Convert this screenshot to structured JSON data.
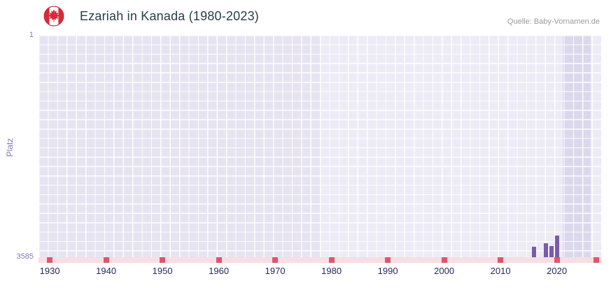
{
  "header": {
    "title": "Ezariah in Kanada (1980-2023)",
    "source": "Quelle: Baby-Vornamen.de",
    "flag_icon": "canada-flag-icon"
  },
  "chart_data": {
    "type": "bar",
    "title": "Ezariah in Kanada (1980-2023)",
    "xlabel": "",
    "ylabel": "Platz",
    "x_range": [
      1928,
      2028
    ],
    "x_ticks": [
      1930,
      1940,
      1950,
      1960,
      1970,
      1980,
      1990,
      2000,
      2010,
      2020
    ],
    "axis_ticks": [
      1930,
      1940,
      1950,
      1960,
      1970,
      1980,
      1990,
      2000,
      2010,
      2020,
      2027
    ],
    "y_axis": {
      "inverted": true,
      "min": 1,
      "max": 3585,
      "top_label": "1",
      "bottom_label": "3585"
    },
    "series": [
      {
        "name": "Ezariah",
        "points": [
          {
            "year": 2016,
            "rank": 3420
          },
          {
            "year": 2018,
            "rank": 3360
          },
          {
            "year": 2019,
            "rank": 3410
          },
          {
            "year": 2020,
            "rank": 3240
          }
        ]
      }
    ],
    "plot_bands": [
      {
        "from": 1928,
        "to": 1978,
        "color": "#e7e4f1"
      },
      {
        "from": 1978,
        "to": 2021,
        "color": "#edebf6"
      },
      {
        "from": 2021,
        "to": 2026,
        "color": "#dcd8ec"
      },
      {
        "from": 2026,
        "to": 2028,
        "color": "#edebf6"
      }
    ],
    "colors": {
      "bar": "#7a5ca8",
      "axis_strip": "#f8dee4",
      "axis_tick": "#e0556c",
      "grid_line": "#ffffff",
      "flag_red": "#d52b39",
      "title_text": "#263e46",
      "x_label_text": "#24295a",
      "y_label_text": "#8678b8"
    },
    "legend": "none",
    "grid": true
  }
}
